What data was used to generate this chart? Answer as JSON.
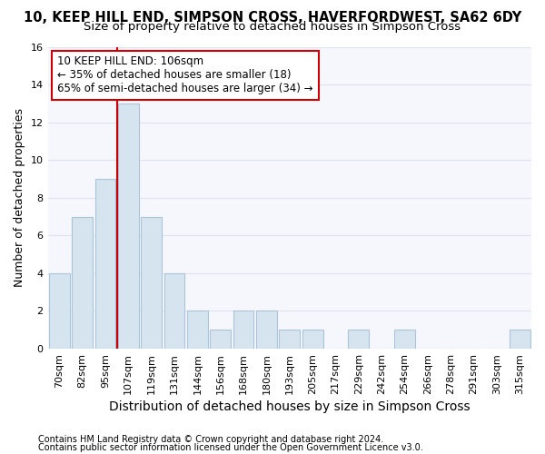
{
  "title1": "10, KEEP HILL END, SIMPSON CROSS, HAVERFORDWEST, SA62 6DY",
  "title2": "Size of property relative to detached houses in Simpson Cross",
  "xlabel": "Distribution of detached houses by size in Simpson Cross",
  "ylabel": "Number of detached properties",
  "footnote1": "Contains HM Land Registry data © Crown copyright and database right 2024.",
  "footnote2": "Contains public sector information licensed under the Open Government Licence v3.0.",
  "annotation_title": "10 KEEP HILL END: 106sqm",
  "annotation_line1": "← 35% of detached houses are smaller (18)",
  "annotation_line2": "65% of semi-detached houses are larger (34) →",
  "bar_labels": [
    "70sqm",
    "82sqm",
    "95sqm",
    "107sqm",
    "119sqm",
    "131sqm",
    "144sqm",
    "156sqm",
    "168sqm",
    "180sqm",
    "193sqm",
    "205sqm",
    "217sqm",
    "229sqm",
    "242sqm",
    "254sqm",
    "266sqm",
    "278sqm",
    "291sqm",
    "303sqm",
    "315sqm"
  ],
  "bar_values": [
    4,
    7,
    9,
    13,
    7,
    4,
    2,
    1,
    2,
    2,
    1,
    1,
    0,
    1,
    0,
    1,
    0,
    0,
    0,
    0,
    1
  ],
  "bar_color": "#d6e4f0",
  "bar_edge_color": "#aac4d8",
  "vline_color": "#cc0000",
  "vline_x": 2.5,
  "annotation_box_color": "#cc0000",
  "ylim": [
    0,
    16
  ],
  "yticks": [
    0,
    2,
    4,
    6,
    8,
    10,
    12,
    14,
    16
  ],
  "bg_color": "#ffffff",
  "plot_bg_color": "#f5f7fc",
  "grid_color": "#dde4f0",
  "title1_fontsize": 10.5,
  "title2_fontsize": 9.5,
  "xlabel_fontsize": 10,
  "ylabel_fontsize": 9,
  "tick_fontsize": 8,
  "annot_fontsize": 8.5,
  "footnote_fontsize": 7
}
